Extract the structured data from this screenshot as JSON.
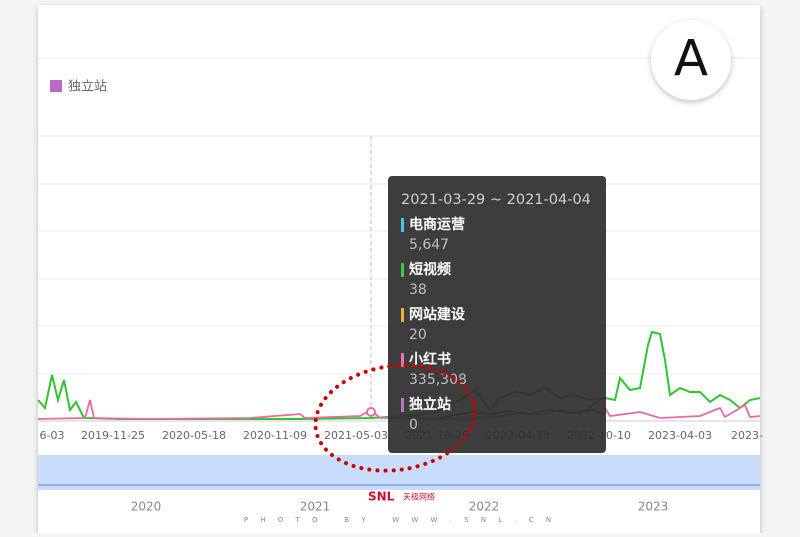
{
  "legend": {
    "label": "独立站",
    "color": "#b86ac3"
  },
  "badge": "A",
  "x_axis": {
    "labels": [
      "6-03",
      "2019-11-25",
      "2020-05-18",
      "2020-11-09",
      "2021-05-03",
      "2021-10-25",
      "2022-04-18",
      "2022-10-10",
      "2023-04-03",
      "2023-"
    ]
  },
  "tooltip": {
    "title": "2021-03-29 ~ 2021-04-04",
    "items": [
      {
        "name": "电商运营",
        "value": "5,647",
        "color": "#3ec1e8"
      },
      {
        "name": "短视频",
        "value": "38",
        "color": "#2fc52f"
      },
      {
        "name": "网站建设",
        "value": "20",
        "color": "#f5a623"
      },
      {
        "name": "小红书",
        "value": "335,308",
        "color": "#e86aa0"
      },
      {
        "name": "独立站",
        "value": "0",
        "color": "#b86ac3"
      }
    ]
  },
  "slider": {
    "years": [
      "2020",
      "2021",
      "2022",
      "2023"
    ]
  },
  "watermark": {
    "brand": "SNL",
    "company": "天极网络",
    "credit": "P H O T O   B Y   W W W . S N L . C N"
  }
}
